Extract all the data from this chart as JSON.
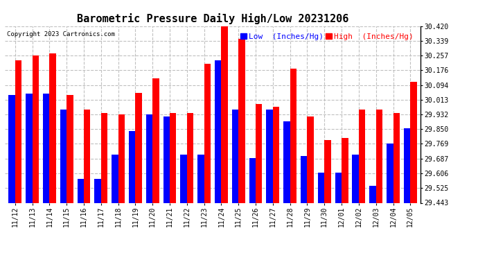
{
  "title": "Barometric Pressure Daily High/Low 20231206",
  "copyright": "Copyright 2023 Cartronics.com",
  "legend_low": "Low  (Inches/Hg)",
  "legend_high": "High  (Inches/Hg)",
  "dates": [
    "11/12",
    "11/13",
    "11/14",
    "11/15",
    "11/16",
    "11/17",
    "11/18",
    "11/19",
    "11/20",
    "11/21",
    "11/22",
    "11/23",
    "11/24",
    "11/25",
    "11/26",
    "11/27",
    "11/28",
    "11/29",
    "11/30",
    "12/01",
    "12/02",
    "12/03",
    "12/04",
    "12/05"
  ],
  "high_values": [
    30.23,
    30.257,
    30.27,
    30.04,
    29.96,
    29.94,
    29.93,
    30.05,
    30.13,
    29.94,
    29.94,
    30.21,
    30.43,
    30.35,
    29.99,
    29.975,
    30.185,
    29.92,
    29.79,
    29.8,
    29.96,
    29.96,
    29.94,
    30.11
  ],
  "low_values": [
    30.04,
    30.045,
    30.045,
    29.96,
    29.575,
    29.575,
    29.71,
    29.84,
    29.93,
    29.92,
    29.71,
    29.71,
    30.23,
    29.96,
    29.69,
    29.96,
    29.895,
    29.7,
    29.608,
    29.61,
    29.71,
    29.537,
    29.77,
    29.855
  ],
  "ylim_min": 29.443,
  "ylim_max": 30.42,
  "yticks": [
    29.443,
    29.525,
    29.606,
    29.687,
    29.769,
    29.85,
    29.932,
    30.013,
    30.094,
    30.176,
    30.257,
    30.339,
    30.42
  ],
  "bar_width": 0.38,
  "high_color": "#ff0000",
  "low_color": "#0000ff",
  "bg_color": "#ffffff",
  "grid_color": "#c0c0c0",
  "title_fontsize": 11,
  "tick_fontsize": 7,
  "legend_fontsize": 8
}
